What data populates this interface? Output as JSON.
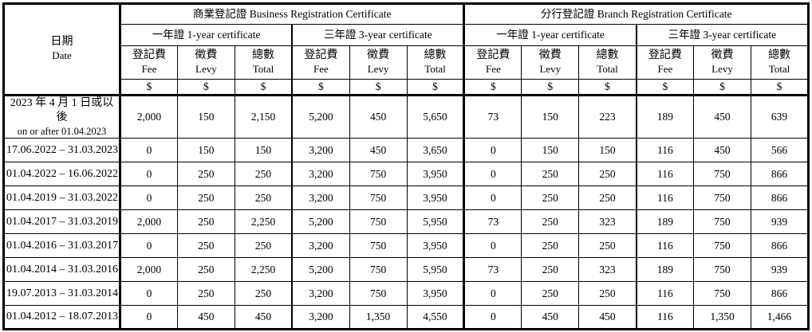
{
  "colors": {
    "border": "#000000",
    "background": "#ffffff",
    "text": "#000000"
  },
  "table": {
    "date_header": {
      "zh": "日期",
      "en": "Date"
    },
    "sections": [
      {
        "title": "商業登記證  Business Registration Certificate"
      },
      {
        "title": "分行登記證  Branch Registration Certificate"
      }
    ],
    "cert_row": [
      "一年證  1-year certificate",
      "三年證  3-year certificate",
      "一年證  1-year certificate",
      "三年證  3-year certificate"
    ],
    "col_headers": [
      {
        "zh": "登記費",
        "en": "Fee"
      },
      {
        "zh": "徵費",
        "en": "Levy"
      },
      {
        "zh": "總數",
        "en": "Total"
      }
    ],
    "currency": "$",
    "rows": [
      {
        "date": [
          "2023 年 4 月 1 日或以後",
          "on or after 01.04.2023"
        ],
        "values": [
          "2,000",
          "150",
          "2,150",
          "5,200",
          "450",
          "5,650",
          "73",
          "150",
          "223",
          "189",
          "450",
          "639"
        ]
      },
      {
        "date": [
          "17.06.2022 – 31.03.2023"
        ],
        "values": [
          "0",
          "150",
          "150",
          "3,200",
          "450",
          "3,650",
          "0",
          "150",
          "150",
          "116",
          "450",
          "566"
        ]
      },
      {
        "date": [
          "01.04.2022 – 16.06.2022"
        ],
        "values": [
          "0",
          "250",
          "250",
          "3,200",
          "750",
          "3,950",
          "0",
          "250",
          "250",
          "116",
          "750",
          "866"
        ]
      },
      {
        "date": [
          "01.04.2019 – 31.03.2022"
        ],
        "values": [
          "0",
          "250",
          "250",
          "3,200",
          "750",
          "3,950",
          "0",
          "250",
          "250",
          "116",
          "750",
          "866"
        ]
      },
      {
        "date": [
          "01.04.2017 – 31.03.2019"
        ],
        "values": [
          "2,000",
          "250",
          "2,250",
          "5,200",
          "750",
          "5,950",
          "73",
          "250",
          "323",
          "189",
          "750",
          "939"
        ]
      },
      {
        "date": [
          "01.04.2016 – 31.03.2017"
        ],
        "values": [
          "0",
          "250",
          "250",
          "3,200",
          "750",
          "3,950",
          "0",
          "250",
          "250",
          "116",
          "750",
          "866"
        ]
      },
      {
        "date": [
          "01.04.2014 – 31.03.2016"
        ],
        "values": [
          "2,000",
          "250",
          "2,250",
          "5,200",
          "750",
          "5,950",
          "73",
          "250",
          "323",
          "189",
          "750",
          "939"
        ]
      },
      {
        "date": [
          "19.07.2013 – 31.03.2014"
        ],
        "values": [
          "0",
          "250",
          "250",
          "3,200",
          "750",
          "3,950",
          "0",
          "250",
          "250",
          "116",
          "750",
          "866"
        ]
      },
      {
        "date": [
          "01.04.2012 – 18.07.2013"
        ],
        "values": [
          "0",
          "450",
          "450",
          "3,200",
          "1,350",
          "4,550",
          "0",
          "450",
          "450",
          "116",
          "1,350",
          "1,466"
        ]
      }
    ]
  }
}
